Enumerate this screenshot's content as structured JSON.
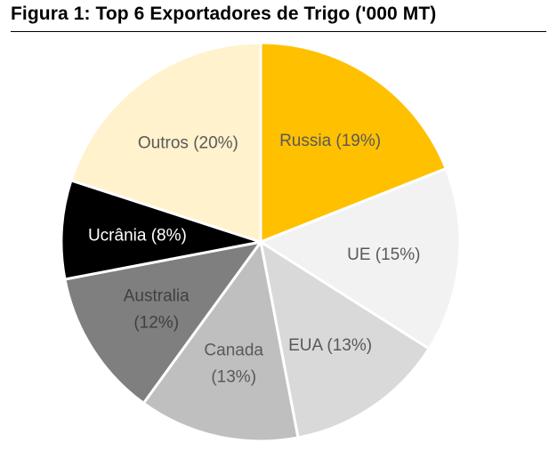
{
  "chart_data": {
    "type": "pie",
    "title": "Figura 1: Top 6 Exportadores de Trigo ('000 MT)",
    "slices": [
      {
        "name": "Russia",
        "value": 19,
        "label": [
          "Russia (19%)"
        ],
        "color": "#FFC000",
        "text_color": "#595959"
      },
      {
        "name": "UE",
        "value": 15,
        "label": [
          "UE (15%)"
        ],
        "color": "#F2F2F2",
        "text_color": "#595959"
      },
      {
        "name": "EUA",
        "value": 13,
        "label": [
          "EUA (13%)"
        ],
        "color": "#D9D9D9",
        "text_color": "#595959"
      },
      {
        "name": "Canada",
        "value": 13,
        "label": [
          "Canada",
          "(13%)"
        ],
        "color": "#BFBFBF",
        "text_color": "#595959"
      },
      {
        "name": "Australia",
        "value": 12,
        "label": [
          "Australia",
          "(12%)"
        ],
        "color": "#7F7F7F",
        "text_color": "#404040"
      },
      {
        "name": "Ucrânia",
        "value": 8,
        "label": [
          "Ucrânia (8%)"
        ],
        "color": "#000000",
        "text_color": "#FFFFFF"
      },
      {
        "name": "Outros",
        "value": 20,
        "label": [
          "Outros (20%)"
        ],
        "color": "#FFF2CC",
        "text_color": "#595959"
      }
    ]
  }
}
